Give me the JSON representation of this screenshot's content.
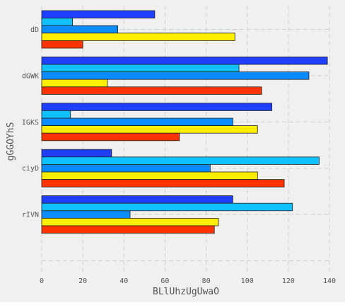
{
  "chart_data": {
    "type": "bar",
    "orientation": "horizontal",
    "title": "",
    "xlabel": "BLlUhzUgUwaO",
    "ylabel": "gGGOYhS",
    "categories": [
      "dD",
      "dGWK",
      "IGKS",
      "ciyD",
      "rIVN"
    ],
    "xlim": [
      0,
      140
    ],
    "xticks": [
      0,
      20,
      40,
      60,
      80,
      100,
      120,
      140
    ],
    "grid": true,
    "legend": "none",
    "series": [
      {
        "color": "#1f3fff",
        "values": [
          55,
          139,
          112,
          34,
          93
        ]
      },
      {
        "color": "#10c0ff",
        "values": [
          15,
          96,
          14,
          135,
          122
        ]
      },
      {
        "color": "#0a8cff",
        "values": [
          37,
          130,
          93,
          82,
          43
        ]
      },
      {
        "color": "#ffee00",
        "values": [
          94,
          32,
          105,
          105,
          86
        ]
      },
      {
        "color": "#ff3300",
        "values": [
          20,
          107,
          67,
          118,
          84
        ]
      }
    ],
    "colors": {
      "plot_background": "#f0f0f0",
      "grid": "#cfcfcf",
      "bar_edge": "#222222"
    }
  }
}
